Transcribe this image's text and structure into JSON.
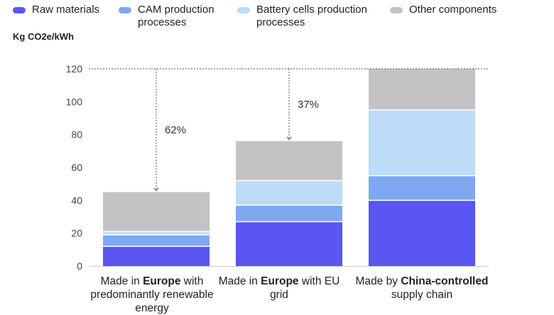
{
  "legend": [
    {
      "label": "Raw materials",
      "color": "#5b55f2"
    },
    {
      "label": "CAM production\nprocesses",
      "color": "#7ea8f0"
    },
    {
      "label": "Battery cells production\nprocesses",
      "color": "#bcdcf7"
    },
    {
      "label": "Other components",
      "color": "#c4c2c4"
    }
  ],
  "unit_label": "Kg CO2e/kWh",
  "chart_data": {
    "type": "bar",
    "stacked": true,
    "ylabel": "Kg CO2e/kWh",
    "ylim": [
      0,
      120
    ],
    "yticks": [
      0,
      20,
      40,
      60,
      80,
      100,
      120
    ],
    "grid": false,
    "legend_position": "top",
    "categories": [
      {
        "parts": [
          {
            "text": "Made in ",
            "bold": false
          },
          {
            "text": "Europe",
            "bold": true
          },
          {
            "text": " with predominantly renewable energy",
            "bold": false
          }
        ]
      },
      {
        "parts": [
          {
            "text": "Made in ",
            "bold": false
          },
          {
            "text": "Europe",
            "bold": true
          },
          {
            "text": " with EU grid",
            "bold": false
          }
        ]
      },
      {
        "parts": [
          {
            "text": "Made by ",
            "bold": false
          },
          {
            "text": "China-controlled",
            "bold": true
          },
          {
            "text": " supply chain",
            "bold": false
          }
        ]
      }
    ],
    "series": [
      {
        "name": "Raw materials",
        "color": "#5b55f2",
        "values": [
          12,
          27,
          40
        ]
      },
      {
        "name": "CAM production processes",
        "color": "#7ea8f0",
        "values": [
          7,
          10,
          15
        ]
      },
      {
        "name": "Battery cells production processes",
        "color": "#bcdcf7",
        "values": [
          2,
          15,
          40
        ]
      },
      {
        "name": "Other components",
        "color": "#c4c2c4",
        "values": [
          24,
          24,
          25
        ]
      }
    ],
    "annotations": [
      {
        "category_index": 0,
        "text": "62%"
      },
      {
        "category_index": 1,
        "text": "37%"
      }
    ],
    "reference_line_value": 120
  }
}
